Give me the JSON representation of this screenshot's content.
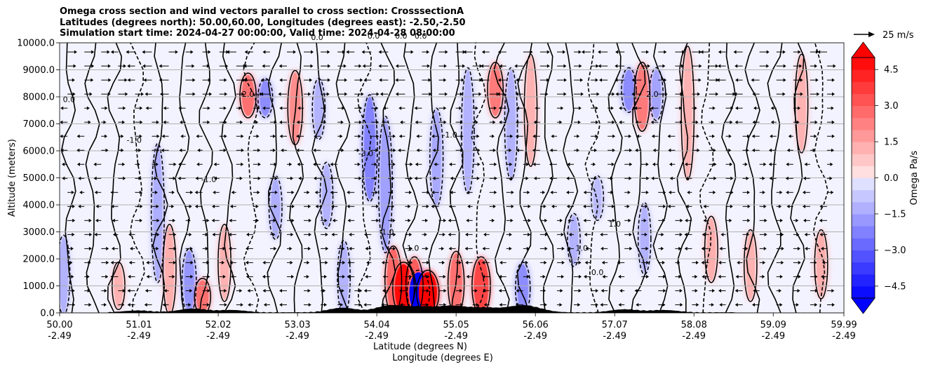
{
  "chart_data": {
    "type": "heatmap",
    "subtype": "filled contour cross-section with contour lines and wind vectors",
    "title_lines": [
      "Omega cross section and wind vectors parallel to cross section: CrosssectionA",
      "Latitudes (degrees north): 50.00,60.00, Longitudes (degrees east): -2.50,-2.50",
      "Simulation start time: 2024-04-27 00:00:00, Valid time: 2024-04-28 08:00:00"
    ],
    "xlabel_line1": "Latitude (degrees N)",
    "xlabel_line2": "Longitude (degrees E)",
    "ylabel": "Altitude (meters)",
    "x_ticks": [
      {
        "lat": 50.0,
        "lat_label": "50.00",
        "lon_label": "-2.49"
      },
      {
        "lat": 51.01,
        "lat_label": "51.01",
        "lon_label": "-2.49"
      },
      {
        "lat": 52.02,
        "lat_label": "52.02",
        "lon_label": "-2.49"
      },
      {
        "lat": 53.03,
        "lat_label": "53.03",
        "lon_label": "-2.49"
      },
      {
        "lat": 54.04,
        "lat_label": "54.04",
        "lon_label": "-2.49"
      },
      {
        "lat": 55.05,
        "lat_label": "55.05",
        "lon_label": "-2.49"
      },
      {
        "lat": 56.06,
        "lat_label": "56.06",
        "lon_label": "-2.49"
      },
      {
        "lat": 57.07,
        "lat_label": "57.07",
        "lon_label": "-2.49"
      },
      {
        "lat": 58.08,
        "lat_label": "58.08",
        "lon_label": "-2.49"
      },
      {
        "lat": 59.09,
        "lat_label": "59.09",
        "lon_label": "-2.49"
      },
      {
        "lat": 59.99,
        "lat_label": "59.99",
        "lon_label": "-2.49"
      }
    ],
    "y_ticks": [
      {
        "value": 0,
        "label": "0.0"
      },
      {
        "value": 1000,
        "label": "1000.0"
      },
      {
        "value": 2000,
        "label": "2000.0"
      },
      {
        "value": 3000,
        "label": "3000.0"
      },
      {
        "value": 4000,
        "label": "4000.0"
      },
      {
        "value": 5000,
        "label": "5000.0"
      },
      {
        "value": 6000,
        "label": "6000.0"
      },
      {
        "value": 7000,
        "label": "7000.0"
      },
      {
        "value": 8000,
        "label": "8000.0"
      },
      {
        "value": 9000,
        "label": "9000.0"
      },
      {
        "value": 10000,
        "label": "10000.0"
      }
    ],
    "xlim": [
      50.0,
      59.99
    ],
    "ylim": [
      0,
      10000
    ],
    "grid": "horizontal",
    "colorbar": {
      "label": "Omega Pa/s",
      "vmin": -5.0,
      "vmax": 5.0,
      "ticks": [
        {
          "value": 4.5,
          "label": "4.5"
        },
        {
          "value": 3.0,
          "label": "3.0"
        },
        {
          "value": 1.5,
          "label": "1.5"
        },
        {
          "value": 0.0,
          "label": "0.0"
        },
        {
          "value": -1.5,
          "label": "−1.5"
        },
        {
          "value": -3.0,
          "label": "−3.0"
        },
        {
          "value": -4.5,
          "label": "−4.5"
        }
      ],
      "extend": "both",
      "negative_color": "#0000ff",
      "positive_color": "#ff0000"
    },
    "vector_key": {
      "label": "25 m/s",
      "value": 25
    },
    "omega_features": [
      {
        "lat": 50.05,
        "alt_bottom": 0,
        "alt_top": 2800,
        "omega": -1.2
      },
      {
        "lat": 50.75,
        "alt_bottom": 200,
        "alt_top": 1800,
        "omega": 1.2
      },
      {
        "lat": 51.25,
        "alt_bottom": 1200,
        "alt_top": 6200,
        "omega": -1.3
      },
      {
        "lat": 51.4,
        "alt_bottom": 0,
        "alt_top": 3200,
        "omega": 1.3
      },
      {
        "lat": 51.65,
        "alt_bottom": 0,
        "alt_top": 2300,
        "omega": -1.8
      },
      {
        "lat": 51.82,
        "alt_bottom": 0,
        "alt_top": 1200,
        "omega": 2.6
      },
      {
        "lat": 52.1,
        "alt_bottom": 500,
        "alt_top": 3200,
        "omega": 1.2
      },
      {
        "lat": 52.4,
        "alt_bottom": 7300,
        "alt_top": 8800,
        "omega": 2.6
      },
      {
        "lat": 52.62,
        "alt_bottom": 7300,
        "alt_top": 8600,
        "omega": -2.0
      },
      {
        "lat": 52.75,
        "alt_bottom": 2800,
        "alt_top": 5000,
        "omega": -1.3
      },
      {
        "lat": 53.0,
        "alt_bottom": 6300,
        "alt_top": 8900,
        "omega": 2.0
      },
      {
        "lat": 53.3,
        "alt_bottom": 6500,
        "alt_top": 8600,
        "omega": -1.2
      },
      {
        "lat": 53.4,
        "alt_bottom": 3200,
        "alt_top": 5500,
        "omega": -1.2
      },
      {
        "lat": 53.62,
        "alt_bottom": 0,
        "alt_top": 2600,
        "omega": -1.2
      },
      {
        "lat": 53.95,
        "alt_bottom": 4200,
        "alt_top": 8000,
        "omega": -2.2
      },
      {
        "lat": 54.15,
        "alt_bottom": 2300,
        "alt_top": 7200,
        "omega": -1.6
      },
      {
        "lat": 54.25,
        "alt_bottom": 0,
        "alt_top": 2400,
        "omega": 2.8
      },
      {
        "lat": 54.38,
        "alt_bottom": 0,
        "alt_top": 1800,
        "omega": 4.8
      },
      {
        "lat": 54.52,
        "alt_bottom": 0,
        "alt_top": 2000,
        "omega": 3.0
      },
      {
        "lat": 54.57,
        "alt_bottom": 0,
        "alt_top": 1500,
        "omega": -5.2
      },
      {
        "lat": 54.69,
        "alt_bottom": 0,
        "alt_top": 1500,
        "omega": 5.2
      },
      {
        "lat": 54.8,
        "alt_bottom": 4000,
        "alt_top": 7500,
        "omega": -1.4
      },
      {
        "lat": 55.05,
        "alt_bottom": 0,
        "alt_top": 2200,
        "omega": 2.6
      },
      {
        "lat": 55.2,
        "alt_bottom": 4500,
        "alt_top": 9000,
        "omega": -1.2
      },
      {
        "lat": 55.37,
        "alt_bottom": 0,
        "alt_top": 2000,
        "omega": 3.5
      },
      {
        "lat": 55.55,
        "alt_bottom": 7300,
        "alt_top": 9200,
        "omega": 2.4
      },
      {
        "lat": 55.75,
        "alt_bottom": 5000,
        "alt_top": 9000,
        "omega": -1.2
      },
      {
        "lat": 55.9,
        "alt_bottom": 0,
        "alt_top": 1800,
        "omega": -2.0
      },
      {
        "lat": 56.0,
        "alt_bottom": 5500,
        "alt_top": 9500,
        "omega": 1.2
      },
      {
        "lat": 56.55,
        "alt_bottom": 1800,
        "alt_top": 3600,
        "omega": -1.2
      },
      {
        "lat": 56.85,
        "alt_bottom": 3500,
        "alt_top": 5000,
        "omega": -1.0
      },
      {
        "lat": 57.25,
        "alt_bottom": 7500,
        "alt_top": 9000,
        "omega": -2.0
      },
      {
        "lat": 57.42,
        "alt_bottom": 6800,
        "alt_top": 9200,
        "omega": 2.4
      },
      {
        "lat": 57.6,
        "alt_bottom": 7200,
        "alt_top": 9000,
        "omega": -1.5
      },
      {
        "lat": 57.45,
        "alt_bottom": 1500,
        "alt_top": 4000,
        "omega": -1.2
      },
      {
        "lat": 58.0,
        "alt_bottom": 5000,
        "alt_top": 9800,
        "omega": 1.2
      },
      {
        "lat": 58.3,
        "alt_bottom": 1200,
        "alt_top": 3500,
        "omega": 1.3
      },
      {
        "lat": 58.8,
        "alt_bottom": 500,
        "alt_top": 3000,
        "omega": 1.2
      },
      {
        "lat": 59.45,
        "alt_bottom": 6000,
        "alt_top": 9500,
        "omega": 1.2
      },
      {
        "lat": 59.7,
        "alt_bottom": 600,
        "alt_top": 3000,
        "omega": 1.3
      }
    ],
    "contour_label_samples": [
      {
        "lat": 50.95,
        "alt": 6300,
        "label": "-1.0"
      },
      {
        "lat": 51.9,
        "alt": 4850,
        "label": "-1.0"
      },
      {
        "lat": 54.97,
        "alt": 6500,
        "label": "-1.0"
      },
      {
        "lat": 54.18,
        "alt": 2900,
        "label": "1.0"
      },
      {
        "lat": 54.5,
        "alt": 2300,
        "label": "1.0"
      },
      {
        "lat": 57.07,
        "alt": 3200,
        "label": "1.0"
      },
      {
        "lat": 56.65,
        "alt": 2300,
        "label": "1.0"
      },
      {
        "lat": 56.85,
        "alt": 1400,
        "label": "0.0"
      },
      {
        "lat": 53.28,
        "alt": 10100,
        "label": "0.0"
      },
      {
        "lat": 54.0,
        "alt": 10150,
        "label": "0.0"
      },
      {
        "lat": 54.35,
        "alt": 10150,
        "label": "0.0"
      },
      {
        "lat": 54.6,
        "alt": 10150,
        "label": "0.0"
      },
      {
        "lat": 50.12,
        "alt": 7800,
        "label": "0.0"
      },
      {
        "lat": 52.4,
        "alt": 8000,
        "label": "2.0"
      },
      {
        "lat": 57.55,
        "alt": 8000,
        "label": "2.0"
      },
      {
        "lat": 53.9,
        "alt": 5800,
        "label": "-3.0"
      }
    ]
  }
}
